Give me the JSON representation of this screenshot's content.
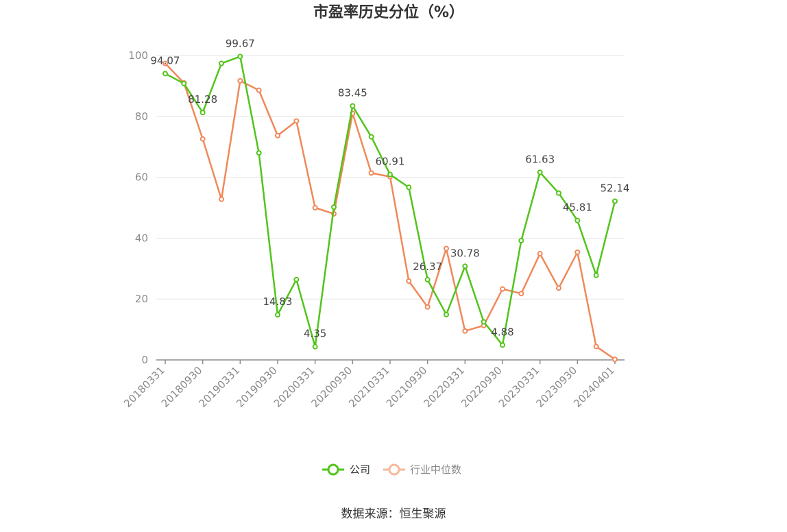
{
  "chart_data": {
    "type": "line",
    "title": "市盈率历史分位（%）",
    "xlabel": "",
    "ylabel": "",
    "ylim": [
      0,
      100
    ],
    "yticks": [
      0,
      20,
      40,
      60,
      80,
      100
    ],
    "x_tick_labels": [
      "20180331",
      "20180930",
      "20190331",
      "20190930",
      "20200331",
      "20200930",
      "20210331",
      "20210930",
      "20220331",
      "20220930",
      "20230331",
      "20230930",
      "20240401"
    ],
    "grid": true,
    "legend_position": "bottom",
    "series": [
      {
        "name": "公司",
        "color": "#52c41a",
        "values": [
          94.07,
          90.8,
          81.28,
          97.4,
          99.67,
          68.0,
          14.83,
          26.4,
          4.35,
          50.2,
          83.45,
          73.3,
          60.91,
          56.7,
          26.37,
          14.9,
          30.78,
          12.5,
          4.88,
          39.2,
          61.63,
          54.8,
          45.81,
          27.8,
          52.14
        ],
        "labels": {
          "0": "94.07",
          "2": "81.28",
          "4": "99.67",
          "6": "14.83",
          "8": "4.35",
          "10": "83.45",
          "12": "60.91",
          "14": "26.37",
          "16": "30.78",
          "18": "4.88",
          "20": "61.63",
          "22": "45.81",
          "24": "52.14"
        }
      },
      {
        "name": "行业中位数",
        "color": "#f0895a",
        "values": [
          97.4,
          91.0,
          72.6,
          52.8,
          91.7,
          88.6,
          73.7,
          78.5,
          50.0,
          48.0,
          81.0,
          61.4,
          60.2,
          25.9,
          17.4,
          36.6,
          9.5,
          11.3,
          23.3,
          21.8,
          34.9,
          23.6,
          35.4,
          4.4,
          0.2
        ]
      }
    ]
  },
  "source_text": "数据来源：恒生聚源"
}
